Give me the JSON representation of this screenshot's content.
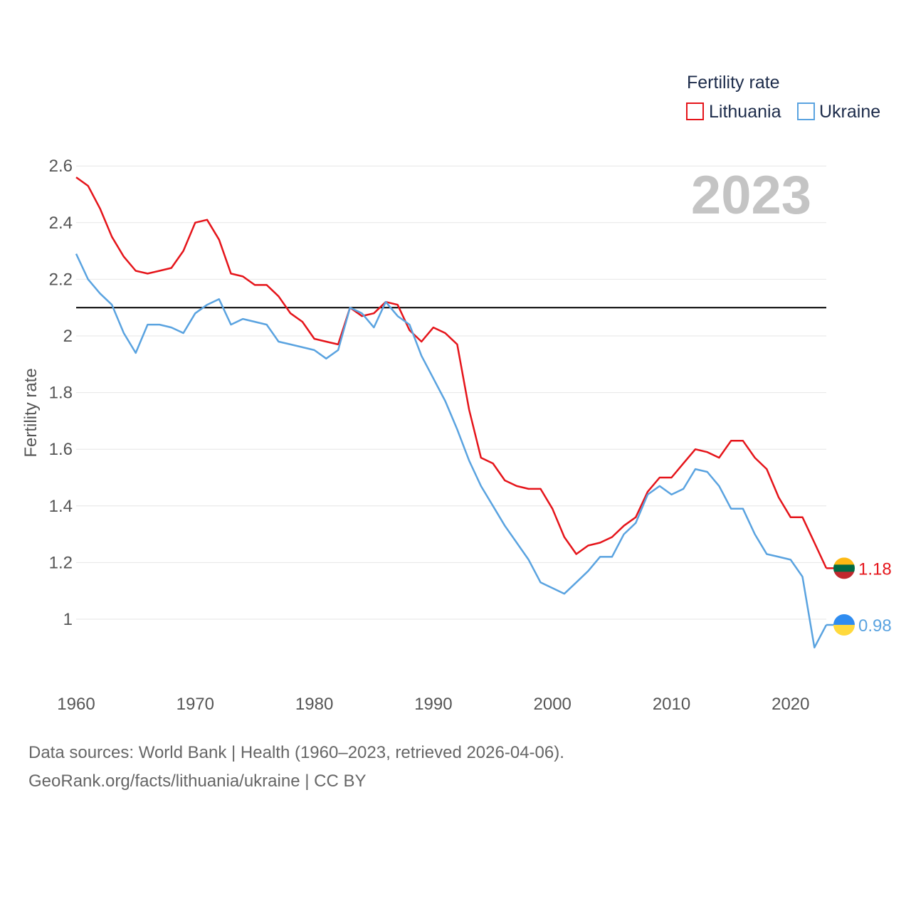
{
  "chart_data": {
    "type": "line",
    "ylabel": "Fertility rate",
    "xlabel": "",
    "legend_title": "Fertility rate",
    "legend_position": "top-right",
    "year_label": "2023",
    "xlim": [
      1960,
      2023
    ],
    "ylim": [
      0.85,
      2.65
    ],
    "x_ticks": [
      1960,
      1970,
      1980,
      1990,
      2000,
      2010,
      2020
    ],
    "y_ticks": [
      1,
      1.2,
      1.4,
      1.6,
      1.8,
      2,
      2.2,
      2.4,
      2.6
    ],
    "y_tick_labels": [
      "1",
      "1.2",
      "1.4",
      "1.6",
      "1.8",
      "2",
      "2.2",
      "2.4",
      "2.6"
    ],
    "x_tick_labels": [
      "1960",
      "1970",
      "1980",
      "1990",
      "2000",
      "2010",
      "2020"
    ],
    "reference_line": {
      "y": 2.1,
      "color": "#000000"
    },
    "grid": true,
    "x": [
      1960,
      1961,
      1962,
      1963,
      1964,
      1965,
      1966,
      1967,
      1968,
      1969,
      1970,
      1971,
      1972,
      1973,
      1974,
      1975,
      1976,
      1977,
      1978,
      1979,
      1980,
      1981,
      1982,
      1983,
      1984,
      1985,
      1986,
      1987,
      1988,
      1989,
      1990,
      1991,
      1992,
      1993,
      1994,
      1995,
      1996,
      1997,
      1998,
      1999,
      2000,
      2001,
      2002,
      2003,
      2004,
      2005,
      2006,
      2007,
      2008,
      2009,
      2010,
      2011,
      2012,
      2013,
      2014,
      2015,
      2016,
      2017,
      2018,
      2019,
      2020,
      2021,
      2022,
      2023
    ],
    "series": [
      {
        "name": "Lithuania",
        "color": "#e5141a",
        "end_label": "1.18",
        "flag_colors": [
          "#fdb913",
          "#006a44",
          "#c1272d"
        ],
        "values": [
          2.56,
          2.53,
          2.45,
          2.35,
          2.28,
          2.23,
          2.22,
          2.23,
          2.24,
          2.3,
          2.4,
          2.41,
          2.34,
          2.22,
          2.21,
          2.18,
          2.18,
          2.14,
          2.08,
          2.05,
          1.99,
          1.98,
          1.97,
          2.1,
          2.07,
          2.08,
          2.12,
          2.11,
          2.02,
          1.98,
          2.03,
          2.01,
          1.97,
          1.74,
          1.57,
          1.55,
          1.49,
          1.47,
          1.46,
          1.46,
          1.39,
          1.29,
          1.23,
          1.26,
          1.27,
          1.29,
          1.33,
          1.36,
          1.45,
          1.5,
          1.5,
          1.55,
          1.6,
          1.59,
          1.57,
          1.63,
          1.63,
          1.57,
          1.53,
          1.43,
          1.36,
          1.36,
          1.27,
          1.18
        ]
      },
      {
        "name": "Ukraine",
        "color": "#5aa3e0",
        "end_label": "0.98",
        "flag_colors": [
          "#2f8cf0",
          "#ffd93d"
        ],
        "values": [
          2.29,
          2.2,
          2.15,
          2.11,
          2.01,
          1.94,
          2.04,
          2.04,
          2.03,
          2.01,
          2.08,
          2.11,
          2.13,
          2.04,
          2.06,
          2.05,
          2.04,
          1.98,
          1.97,
          1.96,
          1.95,
          1.92,
          1.95,
          2.1,
          2.08,
          2.03,
          2.12,
          2.07,
          2.04,
          1.93,
          1.85,
          1.77,
          1.67,
          1.56,
          1.47,
          1.4,
          1.33,
          1.27,
          1.21,
          1.13,
          1.11,
          1.09,
          1.13,
          1.17,
          1.22,
          1.22,
          1.3,
          1.34,
          1.44,
          1.47,
          1.44,
          1.46,
          1.53,
          1.52,
          1.47,
          1.39,
          1.39,
          1.3,
          1.23,
          1.22,
          1.21,
          1.15,
          0.9,
          0.98
        ]
      }
    ]
  },
  "footer": {
    "line1": "Data sources: World Bank | Health (1960–2023, retrieved 2026-04-06).",
    "line2": "GeoRank.org/facts/lithuania/ukraine | CC BY"
  }
}
